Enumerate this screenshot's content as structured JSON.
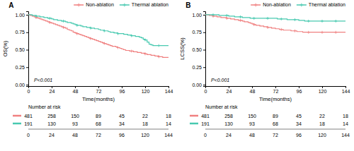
{
  "chart_data": [
    {
      "type": "step",
      "title": "A",
      "xlabel": "Time(months)",
      "ylabel": "OS(%)",
      "annotations": [
        "P<0.001"
      ],
      "x": [
        0,
        2,
        4,
        6,
        8,
        10,
        12,
        14,
        16,
        18,
        20,
        22,
        24,
        26,
        28,
        30,
        32,
        34,
        36,
        38,
        40,
        42,
        44,
        46,
        48,
        50,
        52,
        54,
        56,
        58,
        60,
        62,
        64,
        66,
        68,
        70,
        72,
        74,
        76,
        78,
        80,
        82,
        84,
        86,
        88,
        90,
        92,
        94,
        96,
        98,
        100,
        102,
        104,
        106,
        108,
        110,
        112,
        114,
        116,
        118,
        120,
        122,
        124,
        126,
        128,
        130,
        132,
        134,
        136,
        138,
        140,
        142,
        144
      ],
      "series": [
        {
          "name": "Non-ablation",
          "color": "#F08080",
          "marker": "plus",
          "values": [
            1.0,
            0.99,
            0.98,
            0.97,
            0.96,
            0.95,
            0.94,
            0.93,
            0.92,
            0.91,
            0.9,
            0.89,
            0.88,
            0.87,
            0.86,
            0.85,
            0.84,
            0.83,
            0.82,
            0.81,
            0.79,
            0.78,
            0.77,
            0.75,
            0.74,
            0.73,
            0.72,
            0.71,
            0.7,
            0.69,
            0.68,
            0.67,
            0.66,
            0.65,
            0.64,
            0.63,
            0.62,
            0.61,
            0.6,
            0.59,
            0.58,
            0.57,
            0.56,
            0.55,
            0.55,
            0.54,
            0.53,
            0.52,
            0.51,
            0.5,
            0.49,
            0.49,
            0.48,
            0.48,
            0.47,
            0.47,
            0.46,
            0.46,
            0.45,
            0.45,
            0.44,
            0.43,
            0.43,
            0.42,
            0.42,
            0.41,
            0.41,
            0.4,
            0.4,
            0.39,
            0.39,
            0.39,
            0.39
          ],
          "at_risk": [
            481,
            258,
            150,
            89,
            45,
            22,
            18
          ]
        },
        {
          "name": "Thermal ablation",
          "color": "#48C9B0",
          "marker": "plus",
          "values": [
            1.0,
            1.0,
            0.99,
            0.99,
            0.98,
            0.98,
            0.97,
            0.97,
            0.96,
            0.96,
            0.95,
            0.95,
            0.94,
            0.93,
            0.93,
            0.92,
            0.92,
            0.91,
            0.91,
            0.9,
            0.89,
            0.89,
            0.88,
            0.87,
            0.86,
            0.85,
            0.85,
            0.84,
            0.83,
            0.83,
            0.82,
            0.82,
            0.81,
            0.81,
            0.8,
            0.8,
            0.79,
            0.78,
            0.78,
            0.77,
            0.77,
            0.76,
            0.75,
            0.75,
            0.74,
            0.74,
            0.73,
            0.73,
            0.73,
            0.72,
            0.72,
            0.71,
            0.71,
            0.7,
            0.7,
            0.69,
            0.69,
            0.68,
            0.67,
            0.65,
            0.64,
            0.61,
            0.58,
            0.57,
            0.56,
            0.56,
            0.56,
            0.56,
            0.56,
            0.56,
            0.56,
            0.56,
            0.56
          ],
          "at_risk": [
            191,
            130,
            93,
            68,
            34,
            18,
            14
          ]
        }
      ],
      "xlim": [
        0,
        144
      ],
      "ylim": [
        -0.02,
        1.05
      ],
      "xticks": [
        0,
        24,
        48,
        72,
        96,
        120,
        144
      ],
      "yticks": [
        {
          "value": 0,
          "label": "0.00"
        },
        0.25,
        {
          "value": 0.5,
          "label": "0.50"
        },
        0.75,
        {
          "value": 1,
          "label": "1.00"
        }
      ],
      "legend": "upper right",
      "at_risk_header": "Number at risk",
      "at_risk_times": [
        0,
        24,
        48,
        72,
        96,
        120,
        144
      ]
    },
    {
      "type": "step",
      "title": "B",
      "xlabel": "Time(months)",
      "ylabel": "LCSS(%)",
      "annotations": [
        "P<0.001"
      ],
      "x": [
        0,
        2,
        4,
        6,
        8,
        10,
        12,
        14,
        16,
        18,
        20,
        22,
        24,
        26,
        28,
        30,
        32,
        34,
        36,
        38,
        40,
        42,
        44,
        46,
        48,
        50,
        52,
        54,
        56,
        58,
        60,
        62,
        64,
        66,
        68,
        70,
        72,
        74,
        76,
        78,
        80,
        82,
        84,
        86,
        88,
        90,
        92,
        94,
        96,
        98,
        100,
        102,
        104,
        106,
        108,
        110,
        112,
        114,
        116,
        118,
        120,
        122,
        124,
        126,
        128,
        130,
        132,
        134,
        136,
        138,
        140,
        142,
        144
      ],
      "series": [
        {
          "name": "Non-ablation",
          "color": "#F08080",
          "marker": "plus",
          "values": [
            1.0,
            1.0,
            0.99,
            0.99,
            0.98,
            0.98,
            0.97,
            0.97,
            0.96,
            0.96,
            0.96,
            0.95,
            0.95,
            0.94,
            0.94,
            0.93,
            0.93,
            0.92,
            0.92,
            0.91,
            0.9,
            0.9,
            0.89,
            0.88,
            0.87,
            0.86,
            0.85,
            0.85,
            0.84,
            0.84,
            0.83,
            0.83,
            0.82,
            0.82,
            0.81,
            0.81,
            0.8,
            0.8,
            0.79,
            0.79,
            0.78,
            0.78,
            0.78,
            0.78,
            0.77,
            0.77,
            0.77,
            0.76,
            0.76,
            0.76,
            0.75,
            0.75,
            0.75,
            0.75,
            0.75,
            0.75,
            0.75,
            0.75,
            0.75,
            0.75,
            0.75,
            0.75,
            0.75,
            0.75,
            0.75,
            0.75,
            0.75,
            0.75,
            0.75,
            0.75,
            0.75,
            0.75,
            0.75
          ],
          "at_risk": [
            481,
            258,
            150,
            89,
            45,
            22,
            18
          ]
        },
        {
          "name": "Thermal ablation",
          "color": "#48C9B0",
          "marker": "plus",
          "values": [
            1.0,
            1.0,
            1.0,
            1.0,
            1.0,
            1.0,
            1.0,
            0.99,
            0.99,
            0.99,
            0.99,
            0.99,
            0.98,
            0.98,
            0.98,
            0.97,
            0.97,
            0.97,
            0.97,
            0.96,
            0.96,
            0.96,
            0.96,
            0.95,
            0.95,
            0.95,
            0.95,
            0.95,
            0.95,
            0.95,
            0.95,
            0.95,
            0.95,
            0.95,
            0.95,
            0.95,
            0.95,
            0.94,
            0.94,
            0.94,
            0.94,
            0.94,
            0.93,
            0.93,
            0.93,
            0.93,
            0.93,
            0.93,
            0.92,
            0.92,
            0.92,
            0.91,
            0.91,
            0.91,
            0.91,
            0.91,
            0.91,
            0.91,
            0.91,
            0.91,
            0.91,
            0.91,
            0.91,
            0.91,
            0.91,
            0.91,
            0.91,
            0.91,
            0.91,
            0.91,
            0.91,
            0.91,
            0.91
          ],
          "at_risk": [
            191,
            130,
            93,
            68,
            34,
            18,
            14
          ]
        }
      ],
      "xlim": [
        0,
        144
      ],
      "ylim": [
        -0.02,
        1.05
      ],
      "xticks": [
        0,
        24,
        48,
        72,
        96,
        120,
        144
      ],
      "yticks": [
        {
          "value": 0,
          "label": "0.00"
        },
        0.25,
        {
          "value": 0.5,
          "label": "0.50"
        },
        0.75,
        {
          "value": 1,
          "label": "1.00"
        }
      ],
      "legend": "upper right",
      "at_risk_header": "Number at risk",
      "at_risk_times": [
        0,
        24,
        48,
        72,
        96,
        120,
        144
      ]
    }
  ]
}
